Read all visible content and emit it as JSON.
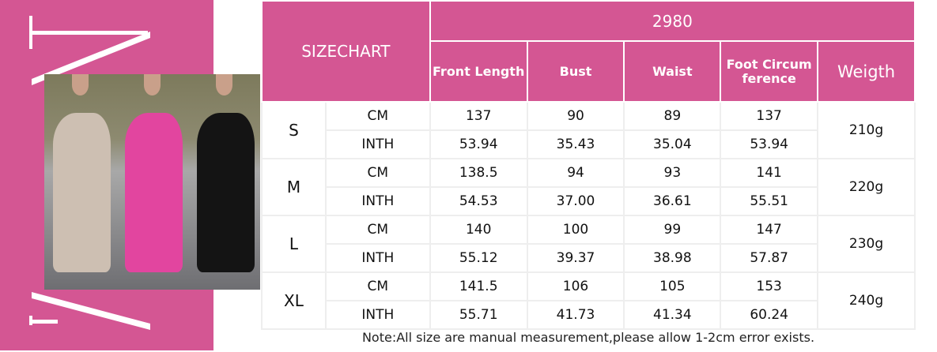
{
  "colors": {
    "brand": "#d45693",
    "dresses": [
      "#cdbfb2",
      "#e2459f",
      "#141414"
    ]
  },
  "table": {
    "title": "SIZECHART",
    "model": "2980",
    "headers": [
      "Front Length",
      "Bust",
      "Waist",
      "Foot Circumference",
      "Weigth"
    ],
    "sizes": [
      {
        "size": "S",
        "weight": "210g",
        "rows": [
          {
            "unit": "CM",
            "values": [
              "137",
              "90",
              "89",
              "137"
            ]
          },
          {
            "unit": "INTH",
            "values": [
              "53.94",
              "35.43",
              "35.04",
              "53.94"
            ]
          }
        ]
      },
      {
        "size": "M",
        "weight": "220g",
        "rows": [
          {
            "unit": "CM",
            "values": [
              "138.5",
              "94",
              "93",
              "141"
            ]
          },
          {
            "unit": "INTH",
            "values": [
              "54.53",
              "37.00",
              "36.61",
              "55.51"
            ]
          }
        ]
      },
      {
        "size": "L",
        "weight": "230g",
        "rows": [
          {
            "unit": "CM",
            "values": [
              "140",
              "100",
              "99",
              "147"
            ]
          },
          {
            "unit": "INTH",
            "values": [
              "55.12",
              "39.37",
              "38.98",
              "57.87"
            ]
          }
        ]
      },
      {
        "size": "XL",
        "weight": "240g",
        "rows": [
          {
            "unit": "CM",
            "values": [
              "141.5",
              "106",
              "105",
              "153"
            ]
          },
          {
            "unit": "INTH",
            "values": [
              "55.71",
              "41.73",
              "41.34",
              "60.24"
            ]
          }
        ]
      }
    ]
  },
  "note": "Note:All size are manual measurement,please allow 1-2cm error exists."
}
